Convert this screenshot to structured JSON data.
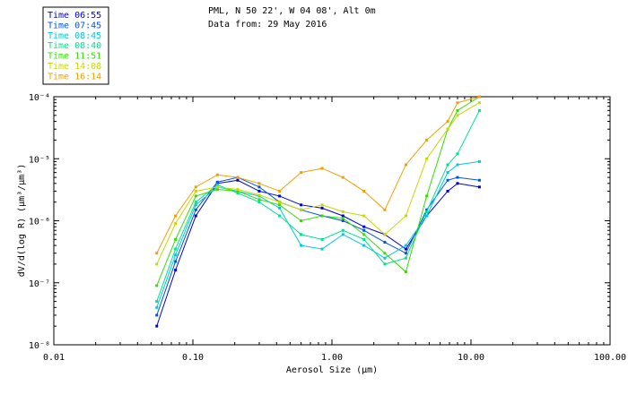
{
  "chart_data": {
    "type": "line",
    "title": "PML, N 50 22', W 04 08', Alt 0m",
    "subtitle": "Data from: 29 May 2016",
    "xlabel": "Aerosol Size (µm)",
    "ylabel": "dV/d(log R) (µm³/µm³)",
    "xscale": "log",
    "yscale": "log",
    "xlim": [
      0.01,
      100
    ],
    "ylim": [
      1e-08,
      0.0001
    ],
    "xticks": [
      {
        "v": 0.01,
        "label": "0.01"
      },
      {
        "v": 0.1,
        "label": "0.10"
      },
      {
        "v": 1,
        "label": "1.00"
      },
      {
        "v": 10,
        "label": "10.00"
      },
      {
        "v": 100,
        "label": "100.00"
      }
    ],
    "yticks": [
      {
        "v": 1e-08,
        "label": "10⁻⁸"
      },
      {
        "v": 1e-07,
        "label": "10⁻⁷"
      },
      {
        "v": 1e-06,
        "label": "10⁻⁶"
      },
      {
        "v": 1e-05,
        "label": "10⁻⁵"
      },
      {
        "v": 0.0001,
        "label": "10⁻⁴"
      }
    ],
    "legend_position": "top-left",
    "x": [
      0.055,
      0.075,
      0.105,
      0.15,
      0.21,
      0.3,
      0.42,
      0.6,
      0.85,
      1.2,
      1.7,
      2.4,
      3.4,
      4.8,
      6.8,
      8.0,
      11.5
    ],
    "series": [
      {
        "name": "Time 06:55",
        "color": "#0000d0",
        "values": [
          2e-08,
          1.6e-07,
          1.2e-06,
          4e-06,
          4.5e-06,
          3e-06,
          2.5e-06,
          1.8e-06,
          1.6e-06,
          1.2e-06,
          8e-07,
          6e-07,
          3.5e-07,
          1.2e-06,
          3e-06,
          4e-06,
          3.5e-06
        ]
      },
      {
        "name": "Time 07:45",
        "color": "#0055e0",
        "values": [
          3e-08,
          2.2e-07,
          1.5e-06,
          4.2e-06,
          5e-06,
          3.5e-06,
          2e-06,
          1.5e-06,
          1.2e-06,
          1e-06,
          7e-07,
          4.5e-07,
          3e-07,
          1.5e-06,
          4.5e-06,
          5e-06,
          4.5e-06
        ]
      },
      {
        "name": "Time 08:45",
        "color": "#00c8e0",
        "values": [
          4e-08,
          2.8e-07,
          1.8e-06,
          3.5e-06,
          3e-06,
          2.5e-06,
          1.6e-06,
          4e-07,
          3.5e-07,
          6e-07,
          4e-07,
          2.5e-07,
          4e-07,
          1.2e-06,
          6e-06,
          8e-06,
          9e-06
        ]
      },
      {
        "name": "Time 08:40",
        "color": "#00e090",
        "values": [
          5e-08,
          3.5e-07,
          2e-06,
          3.8e-06,
          2.8e-06,
          2e-06,
          1.2e-06,
          6e-07,
          5e-07,
          7e-07,
          5e-07,
          2e-07,
          2.5e-07,
          1.4e-06,
          8e-06,
          1.2e-05,
          6e-05
        ]
      },
      {
        "name": "Time 11:51",
        "color": "#30e000",
        "values": [
          9e-08,
          5e-07,
          2.5e-06,
          3.2e-06,
          3e-06,
          2.2e-06,
          1.8e-06,
          1e-06,
          1.2e-06,
          1.1e-06,
          6e-07,
          3e-07,
          1.5e-07,
          2.5e-06,
          3e-05,
          6e-05,
          0.0001
        ]
      },
      {
        "name": "Time 14:08",
        "color": "#c8d800",
        "values": [
          2e-07,
          9e-07,
          3e-06,
          3.5e-06,
          3.2e-06,
          2.6e-06,
          2e-06,
          1.5e-06,
          1.8e-06,
          1.4e-06,
          1.2e-06,
          6e-07,
          1.2e-06,
          1e-05,
          3e-05,
          5e-05,
          8e-05
        ]
      },
      {
        "name": "Time 16:14",
        "color": "#f0a000",
        "values": [
          3e-07,
          1.2e-06,
          3.5e-06,
          5.5e-06,
          5e-06,
          4e-06,
          3e-06,
          6e-06,
          7e-06,
          5e-06,
          3e-06,
          1.5e-06,
          8e-06,
          2e-05,
          4e-05,
          8e-05,
          0.0001
        ]
      }
    ]
  }
}
